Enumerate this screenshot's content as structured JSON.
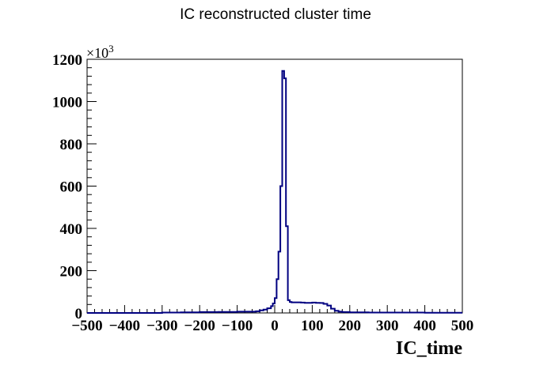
{
  "chart_data": {
    "type": "histogram",
    "title": "IC reconstructed cluster time",
    "xlabel": "IC_time",
    "ylabel": "",
    "y_multiplier": "×10",
    "y_multiplier_exponent": "3",
    "xlim": [
      -500,
      500
    ],
    "ylim": [
      0,
      1200
    ],
    "x_ticks": [
      -500,
      -400,
      -300,
      -200,
      -100,
      0,
      100,
      200,
      300,
      400,
      500
    ],
    "y_ticks": [
      0,
      200,
      400,
      600,
      800,
      1000,
      1200
    ],
    "grid": false,
    "legend": "none",
    "line_color": "#000080",
    "x": [
      -500,
      -400,
      -300,
      -250,
      -200,
      -150,
      -100,
      -50,
      -40,
      -30,
      -20,
      -10,
      -5,
      0,
      5,
      10,
      15,
      20,
      25,
      30,
      35,
      40,
      45,
      50,
      60,
      70,
      80,
      90,
      100,
      110,
      120,
      130,
      140,
      150,
      160,
      170,
      180,
      200,
      250,
      300,
      400,
      500
    ],
    "values": [
      0,
      0,
      2,
      3,
      4,
      5,
      6,
      8,
      12,
      16,
      22,
      32,
      45,
      70,
      160,
      290,
      600,
      1145,
      1110,
      410,
      60,
      52,
      50,
      50,
      50,
      49,
      48,
      48,
      49,
      48,
      47,
      43,
      35,
      20,
      10,
      6,
      4,
      3,
      2,
      2,
      1,
      1
    ]
  }
}
